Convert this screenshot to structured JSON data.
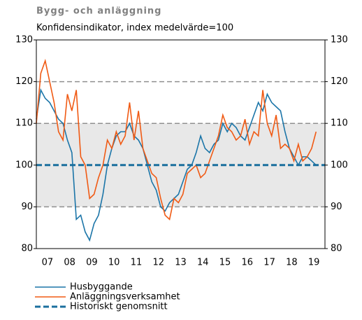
{
  "chart_data": {
    "type": "line",
    "title": "Bygg- och anläggning",
    "subtitle": "Konfidensindikator, index medelvärde=100",
    "x": [
      2007.0,
      2007.2,
      2007.4,
      2007.6,
      2007.8,
      2008.0,
      2008.2,
      2008.4,
      2008.6,
      2008.8,
      2009.0,
      2009.2,
      2009.4,
      2009.6,
      2009.8,
      2010.0,
      2010.2,
      2010.4,
      2010.6,
      2010.8,
      2011.0,
      2011.2,
      2011.4,
      2011.6,
      2011.8,
      2012.0,
      2012.2,
      2012.4,
      2012.6,
      2012.8,
      2013.0,
      2013.2,
      2013.4,
      2013.6,
      2013.8,
      2014.0,
      2014.2,
      2014.4,
      2014.6,
      2014.8,
      2015.0,
      2015.2,
      2015.4,
      2015.6,
      2015.8,
      2016.0,
      2016.2,
      2016.4,
      2016.6,
      2016.8,
      2017.0,
      2017.2,
      2017.4,
      2017.6,
      2017.8,
      2018.0,
      2018.2,
      2018.4,
      2018.6,
      2018.8,
      2019.0,
      2019.2,
      2019.4,
      2019.6
    ],
    "series": [
      {
        "name": "Husbyggande",
        "color": "#1b75a8",
        "values": [
          111,
          118,
          116,
          115,
          113,
          111,
          110,
          106,
          103,
          87,
          88,
          84,
          82,
          86,
          88,
          93,
          100,
          104,
          107,
          108,
          108,
          110,
          107,
          106,
          104,
          100,
          96,
          94,
          90,
          89,
          91,
          92,
          93,
          96,
          99,
          100,
          103,
          107,
          104,
          103,
          105,
          106,
          110,
          108,
          110,
          109,
          107,
          106,
          109,
          112,
          115,
          113,
          117,
          115,
          114,
          113,
          108,
          104,
          102,
          100,
          102,
          102,
          101,
          100
        ]
      },
      {
        "name": "Anläggningsverksamhet",
        "color": "#f05a14",
        "values": [
          110,
          122,
          125,
          120,
          115,
          108,
          106,
          117,
          113,
          118,
          102,
          100,
          92,
          93,
          97,
          100,
          106,
          104,
          108,
          105,
          107,
          115,
          106,
          113,
          104,
          101,
          98,
          97,
          92,
          88,
          87,
          92,
          91,
          93,
          98,
          99,
          100,
          97,
          98,
          101,
          104,
          107,
          112,
          109,
          108,
          106,
          107,
          111,
          105,
          108,
          107,
          118,
          110,
          107,
          112,
          104,
          105,
          104,
          101,
          105,
          101,
          102,
          104,
          108
        ]
      }
    ],
    "average": {
      "name": "Historiskt genomsnitt",
      "value": 100,
      "color": "#1b6f9e"
    },
    "band": [
      90,
      110
    ],
    "xlim": [
      2007,
      2020
    ],
    "xticks": [
      {
        "value": 2007.5,
        "label": "07"
      },
      {
        "value": 2008.5,
        "label": "08"
      },
      {
        "value": 2009.5,
        "label": "09"
      },
      {
        "value": 2010.5,
        "label": "10"
      },
      {
        "value": 2011.5,
        "label": "11"
      },
      {
        "value": 2012.5,
        "label": "12"
      },
      {
        "value": 2013.5,
        "label": "13"
      },
      {
        "value": 2014.5,
        "label": "14"
      },
      {
        "value": 2015.5,
        "label": "15"
      },
      {
        "value": 2016.5,
        "label": "16"
      },
      {
        "value": 2017.5,
        "label": "17"
      },
      {
        "value": 2018.5,
        "label": "18"
      },
      {
        "value": 2019.5,
        "label": "19"
      }
    ],
    "ylim": [
      80,
      130
    ],
    "yticks": [
      80,
      90,
      100,
      110,
      120,
      130
    ],
    "grid": true
  }
}
